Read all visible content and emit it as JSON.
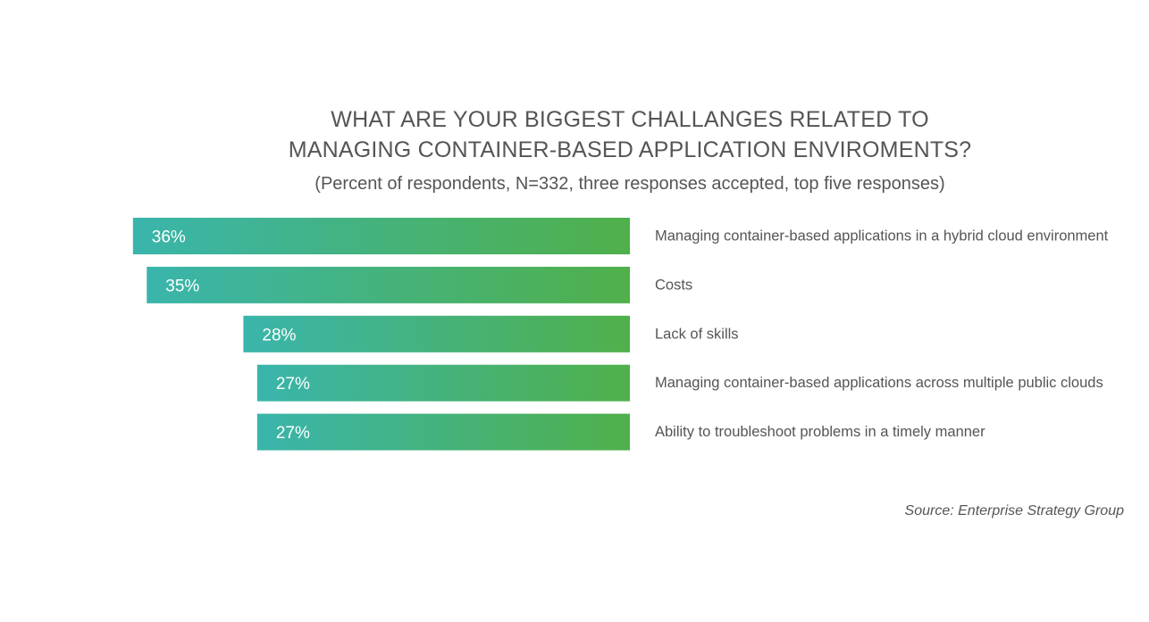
{
  "chart_data": {
    "type": "bar",
    "orientation": "horizontal",
    "title_lines": [
      "WHAT ARE YOUR BIGGEST CHALLANGES RELATED TO",
      "MANAGING CONTAINER-BASED APPLICATION ENVIROMENTS?"
    ],
    "subtitle": "(Percent of respondents, N=332, three responses accepted, top five responses)",
    "categories": [
      "Managing container-based applications in a hybrid cloud environment",
      "Costs",
      "Lack of skills",
      "Managing container-based applications across multiple public clouds",
      "Ability to troubleshoot problems in a timely manner"
    ],
    "values": [
      36,
      35,
      28,
      27,
      27
    ],
    "value_labels": [
      "36%",
      "35%",
      "28%",
      "27%",
      "27%"
    ],
    "unit": "%",
    "bar_direction": "right-aligned, extending left",
    "grid": false,
    "colors": {
      "gradient_start": "#3ab5ac",
      "gradient_end": "#50b04a",
      "text": "#555555",
      "bar_label": "#ffffff"
    }
  },
  "source": "Source: Enterprise Strategy Group"
}
